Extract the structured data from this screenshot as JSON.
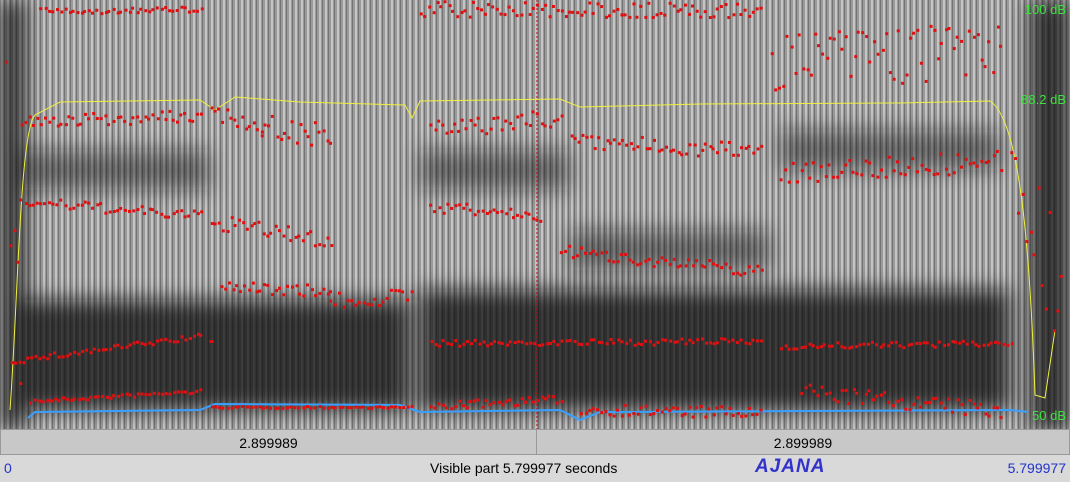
{
  "intensity_labels": {
    "top": "100 dB",
    "cursor": "88.2 dB",
    "bottom": "50 dB"
  },
  "selection_bar": {
    "left": "2.899989",
    "right": "2.899989"
  },
  "status_bar": {
    "start": "0",
    "visible": "Visible part 5.799977 seconds",
    "name": "AJANA",
    "end": "5.799977"
  }
}
